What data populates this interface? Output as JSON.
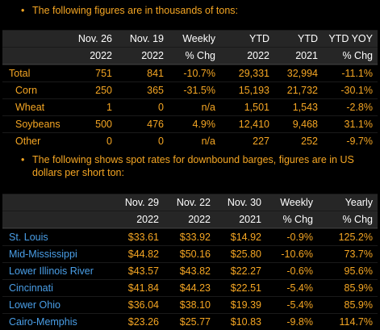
{
  "notes": {
    "first": "The following figures are in thousands of tons:",
    "second": "The following shows spot rates for downbound barges, figures are in US dollars per short ton:"
  },
  "table1": {
    "header_top": [
      "",
      "Nov. 26",
      "Nov. 19",
      "Weekly",
      "YTD",
      "YTD",
      "YTD YOY"
    ],
    "header_bottom": [
      "",
      "2022",
      "2022",
      "% Chg",
      "2022",
      "2021",
      "% Chg"
    ],
    "rows": [
      [
        "Total",
        "751",
        "841",
        "-10.7%",
        "29,331",
        "32,994",
        "-11.1%"
      ],
      [
        "Corn",
        "250",
        "365",
        "-31.5%",
        "15,193",
        "21,732",
        "-30.1%"
      ],
      [
        "Wheat",
        "1",
        "0",
        "n/a",
        "1,501",
        "1,543",
        "-2.8%"
      ],
      [
        "Soybeans",
        "500",
        "476",
        "4.9%",
        "12,410",
        "9,468",
        "31.1%"
      ],
      [
        "Other",
        "0",
        "0",
        "n/a",
        "227",
        "252",
        "-9.7%"
      ]
    ]
  },
  "table2": {
    "header_top": [
      "",
      "Nov. 29",
      "Nov. 22",
      "Nov. 30",
      "Weekly",
      "Yearly"
    ],
    "header_bottom": [
      "",
      "2022",
      "2022",
      "2021",
      "% Chg",
      "% Chg"
    ],
    "rows": [
      [
        "St. Louis",
        "$33.61",
        "$33.92",
        "$14.92",
        "-0.9%",
        "125.2%"
      ],
      [
        "Mid-Mississippi",
        "$44.82",
        "$50.16",
        "$25.80",
        "-10.6%",
        "73.7%"
      ],
      [
        "Lower Illinois River",
        "$43.57",
        "$43.82",
        "$22.27",
        "-0.6%",
        "95.6%"
      ],
      [
        "Cincinnati",
        "$41.84",
        "$44.23",
        "$22.51",
        "-5.4%",
        "85.9%"
      ],
      [
        "Lower Ohio",
        "$36.04",
        "$38.10",
        "$19.39",
        "-5.4%",
        "85.9%"
      ],
      [
        "Cairo-Memphis",
        "$23.26",
        "$25.77",
        "$10.83",
        "-9.8%",
        "114.7%"
      ]
    ]
  },
  "colors": {
    "accent": "#f5a623",
    "label_blue": "#4a9fe8",
    "header_bg": "#262626",
    "background": "#000000"
  }
}
